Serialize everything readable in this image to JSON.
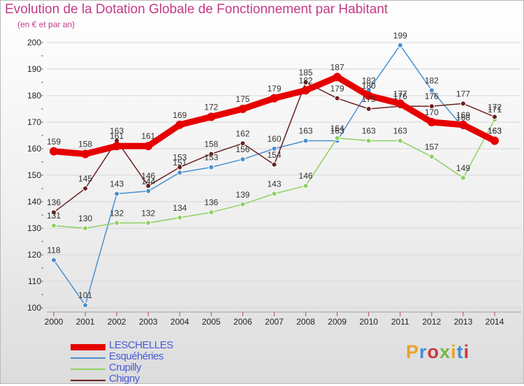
{
  "title": "Evolution de la Dotation Globale de Fonctionnement par Habitant",
  "subtitle": "(en € et par an)",
  "logo": {
    "text": "Proxiti",
    "colors": [
      "#e8a32c",
      "#3d8fd6",
      "#c83a3a",
      "#7ab648",
      "#e8a32c",
      "#3d8fd6",
      "#c83a3a"
    ]
  },
  "chart_data": {
    "type": "line",
    "title": "Evolution de la Dotation Globale de Fonctionnement par Habitant",
    "subtitle": "(en € et par an)",
    "xlabel": "",
    "ylabel": "",
    "x": [
      "2000",
      "2001",
      "2002",
      "2003",
      "2004",
      "2005",
      "2006",
      "2007",
      "2008",
      "2009",
      "2010",
      "2011",
      "2012",
      "2013",
      "2014"
    ],
    "ylim": [
      100,
      200
    ],
    "yticks": [
      100,
      110,
      120,
      130,
      140,
      150,
      160,
      170,
      180,
      190,
      200
    ],
    "grid": true,
    "legend_position": "bottom-left",
    "series": [
      {
        "name": "LESCHELLES",
        "color": "#e60000",
        "emphasis": true,
        "values": [
          159,
          158,
          161,
          161,
          169,
          172,
          175,
          179,
          182,
          187,
          180,
          177,
          170,
          169,
          163
        ]
      },
      {
        "name": "Esquéhéries",
        "color": "#4a8fd0",
        "values": [
          118,
          101,
          143,
          144,
          151,
          153,
          156,
          160,
          163,
          163,
          182,
          199,
          182,
          168,
          163
        ]
      },
      {
        "name": "Crupilly",
        "color": "#8fd060",
        "values": [
          131,
          130,
          132,
          132,
          134,
          136,
          139,
          143,
          146,
          164,
          163,
          163,
          157,
          149,
          171
        ]
      },
      {
        "name": "Chigny",
        "color": "#6b1f1f",
        "values": [
          136,
          145,
          163,
          146,
          153,
          158,
          162,
          154,
          185,
          179,
          175,
          176,
          176,
          177,
          172
        ]
      }
    ]
  }
}
